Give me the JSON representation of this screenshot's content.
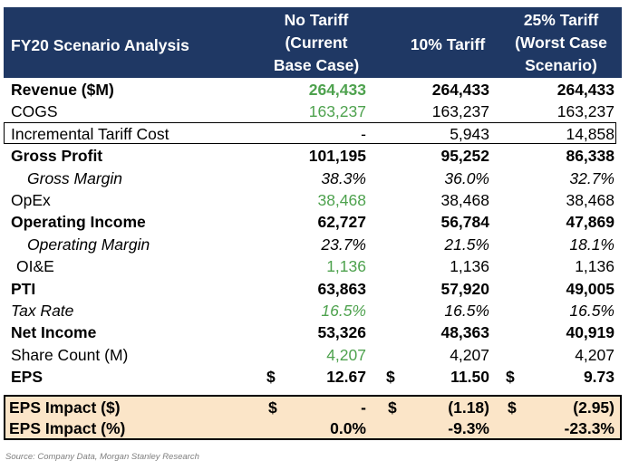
{
  "header": {
    "title": "FY20 Scenario Analysis",
    "col1": [
      "No Tariff",
      "(Current",
      "Base Case)"
    ],
    "col2": "10% Tariff",
    "col3": [
      "25% Tariff",
      "(Worst Case",
      "Scenario)"
    ]
  },
  "rows": [
    {
      "label": "Revenue ($M)",
      "v1": "264,433",
      "v2": "264,433",
      "v3": "264,433"
    },
    {
      "label": "COGS",
      "v1": "163,237",
      "v2": "163,237",
      "v3": "163,237"
    },
    {
      "label": "Incremental Tariff Cost",
      "v1": "-",
      "v2": "5,943",
      "v3": "14,858"
    },
    {
      "label": "Gross Profit",
      "v1": "101,195",
      "v2": "95,252",
      "v3": "86,338"
    },
    {
      "label": "Gross Margin",
      "v1": "38.3%",
      "v2": "36.0%",
      "v3": "32.7%"
    },
    {
      "label": "OpEx",
      "v1": "38,468",
      "v2": "38,468",
      "v3": "38,468"
    },
    {
      "label": "Operating Income",
      "v1": "62,727",
      "v2": "56,784",
      "v3": "47,869"
    },
    {
      "label": "Operating Margin",
      "v1": "23.7%",
      "v2": "21.5%",
      "v3": "18.1%"
    },
    {
      "label": "OI&E",
      "v1": "1,136",
      "v2": "1,136",
      "v3": "1,136"
    },
    {
      "label": "PTI",
      "v1": "63,863",
      "v2": "57,920",
      "v3": "49,005"
    },
    {
      "label": "Tax Rate",
      "v1": "16.5%",
      "v2": "16.5%",
      "v3": "16.5%"
    },
    {
      "label": "Net Income",
      "v1": "53,326",
      "v2": "48,363",
      "v3": "40,919"
    },
    {
      "label": "Share Count (M)",
      "v1": "4,207",
      "v2": "4,207",
      "v3": "4,207"
    },
    {
      "label": "EPS",
      "d": "$",
      "v1": "12.67",
      "v2": "11.50",
      "v3": "9.73"
    }
  ],
  "impact": [
    {
      "label": "EPS Impact ($)",
      "d": "$",
      "v1": "-",
      "v2": "(1.18)",
      "v3": "(2.95)"
    },
    {
      "label": "EPS Impact (%)",
      "v1": "0.0%",
      "v2": "-9.3%",
      "v3": "-23.3%"
    }
  ],
  "source": "Source: Company Data, Morgan Stanley Research",
  "colors": {
    "header_bg": "#1f3864",
    "input_green": "#4ea24e",
    "impact_bg": "#fbe5c8"
  }
}
